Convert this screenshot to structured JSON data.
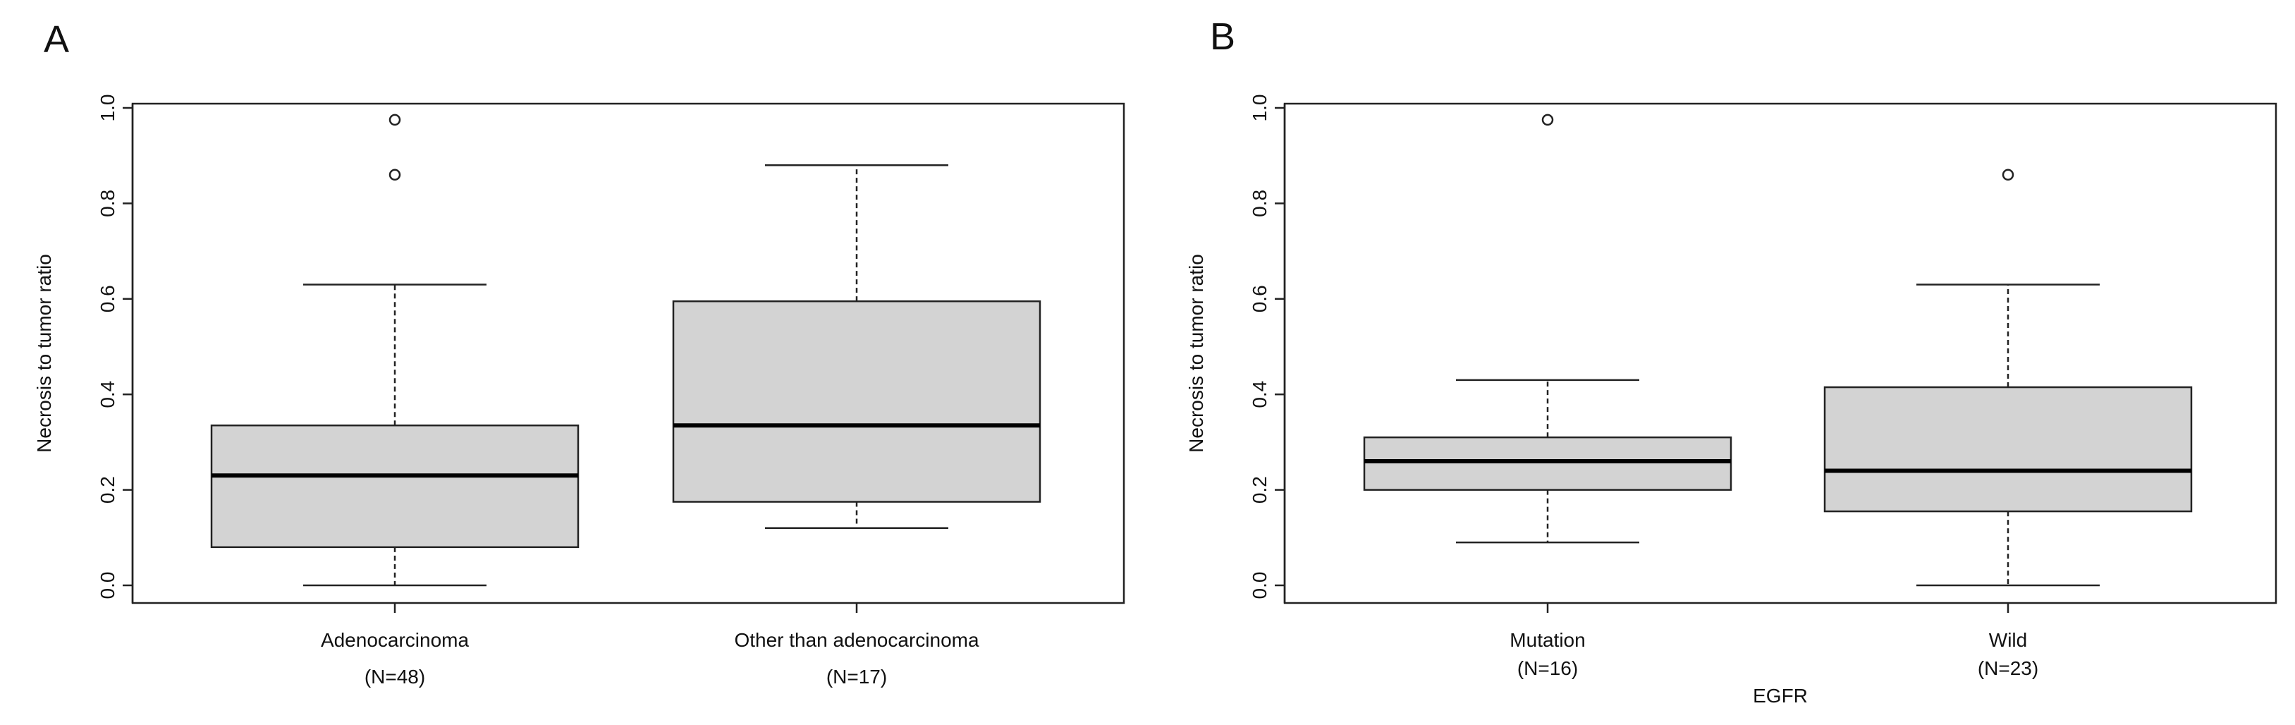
{
  "chart_data": [
    {
      "type": "boxplot",
      "panel_label": "A",
      "ylabel": "Necrosis to tumor ratio",
      "xlabel": "",
      "ylim": [
        0.0,
        1.0
      ],
      "yticks": [
        "0.0",
        "0.2",
        "0.4",
        "0.6",
        "0.8",
        "1.0"
      ],
      "categories": [
        {
          "label": "Adenocarcinoma",
          "n_label": "(N=48)",
          "whisker_low": 0.0,
          "q1": 0.08,
          "median": 0.23,
          "q3": 0.335,
          "whisker_high": 0.63,
          "outliers": [
            0.86,
            0.975
          ]
        },
        {
          "label": "Other than adenocarcinoma",
          "n_label": "(N=17)",
          "whisker_low": 0.12,
          "q1": 0.175,
          "median": 0.335,
          "q3": 0.595,
          "whisker_high": 0.88,
          "outliers": []
        }
      ]
    },
    {
      "type": "boxplot",
      "panel_label": "B",
      "ylabel": "Necrosis to tumor ratio",
      "xlabel": "EGFR",
      "ylim": [
        0.0,
        1.0
      ],
      "yticks": [
        "0.0",
        "0.2",
        "0.4",
        "0.6",
        "0.8",
        "1.0"
      ],
      "categories": [
        {
          "label": "Mutation",
          "n_label": "(N=16)",
          "whisker_low": 0.09,
          "q1": 0.2,
          "median": 0.26,
          "q3": 0.31,
          "whisker_high": 0.43,
          "outliers": [
            0.975
          ]
        },
        {
          "label": "Wild",
          "n_label": "(N=23)",
          "whisker_low": 0.0,
          "q1": 0.155,
          "median": 0.24,
          "q3": 0.415,
          "whisker_high": 0.63,
          "outliers": [
            0.86
          ]
        }
      ]
    }
  ]
}
